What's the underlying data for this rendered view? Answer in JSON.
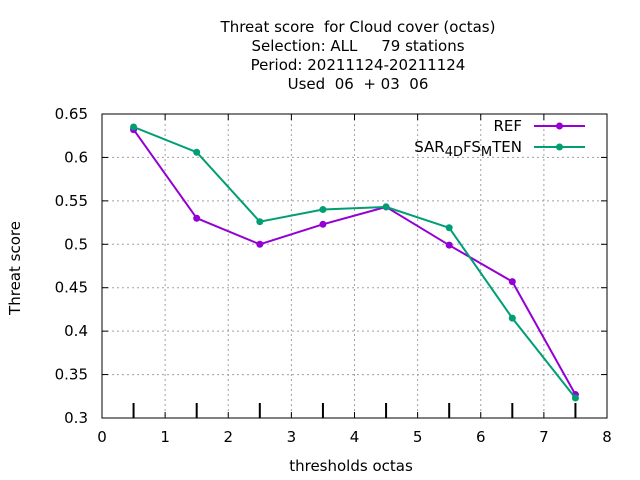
{
  "chart_data": {
    "type": "line",
    "title_lines": [
      "Threat score  for Cloud cover (octas)",
      "Selection: ALL     79 stations",
      "Period: 20211124-20211124",
      "Used  06  + 03  06"
    ],
    "xlabel": "thresholds octas",
    "ylabel": "Threat score",
    "xlim": [
      0,
      8
    ],
    "ylim": [
      0.3,
      0.65
    ],
    "xticks": [
      0,
      1,
      2,
      3,
      4,
      5,
      6,
      7,
      8
    ],
    "yticks": [
      0.3,
      0.35,
      0.4,
      0.45,
      0.5,
      0.55,
      0.6,
      0.65
    ],
    "grid": true,
    "legend_position": "top-right",
    "threshold_marks": [
      0.5,
      1.5,
      2.5,
      3.5,
      4.5,
      5.5,
      6.5,
      7.5
    ],
    "series": [
      {
        "name": "REF",
        "color": "#9400d3",
        "x": [
          0.5,
          1.5,
          2.5,
          3.5,
          4.5,
          5.5,
          6.5,
          7.5
        ],
        "y": [
          0.632,
          0.53,
          0.5,
          0.523,
          0.543,
          0.499,
          0.457,
          0.327
        ]
      },
      {
        "name": "SAR_4D FS_M TEN",
        "legend_parts": [
          {
            "text": "SAR",
            "shift": "base"
          },
          {
            "text": "4D",
            "shift": "sub"
          },
          {
            "text": "FS",
            "shift": "base"
          },
          {
            "text": "M",
            "shift": "sub"
          },
          {
            "text": "TEN",
            "shift": "base"
          }
        ],
        "color": "#009e73",
        "x": [
          0.5,
          1.5,
          2.5,
          3.5,
          4.5,
          5.5,
          6.5,
          7.5
        ],
        "y": [
          0.635,
          0.606,
          0.526,
          0.54,
          0.543,
          0.519,
          0.415,
          0.323
        ]
      }
    ]
  }
}
